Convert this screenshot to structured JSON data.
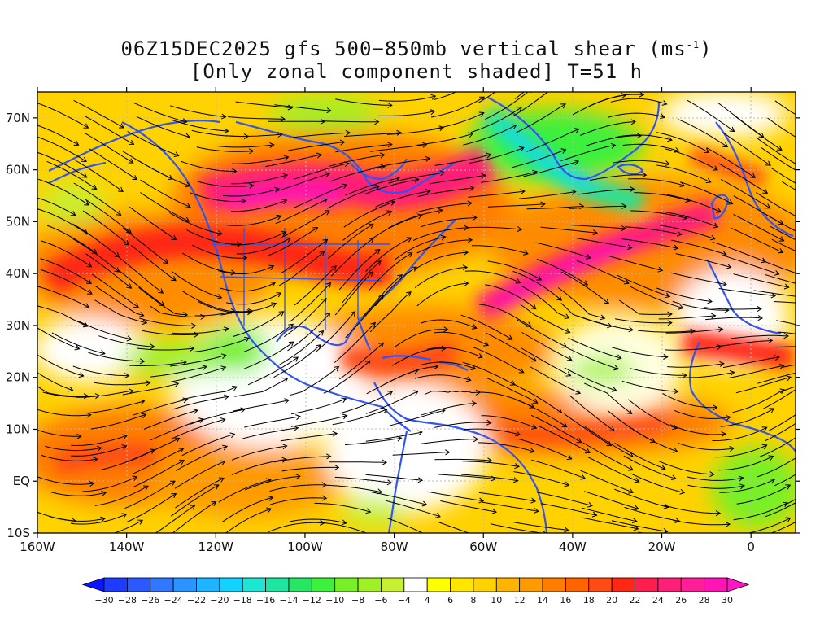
{
  "title": {
    "line1_prefix": "06Z15DEC2025 gfs 500−850mb vertical shear (ms",
    "line1_sup": "-1",
    "line1_suffix": ")",
    "line2": "[Only zonal component shaded] T=51 h"
  },
  "map": {
    "lon_range": [
      -160,
      10
    ],
    "lat_range": [
      -10,
      75
    ],
    "lat_ticks": [
      {
        "value": 70,
        "label": "70N"
      },
      {
        "value": 60,
        "label": "60N"
      },
      {
        "value": 50,
        "label": "50N"
      },
      {
        "value": 40,
        "label": "40N"
      },
      {
        "value": 30,
        "label": "30N"
      },
      {
        "value": 20,
        "label": "20N"
      },
      {
        "value": 10,
        "label": "10N"
      },
      {
        "value": 0,
        "label": "EQ"
      },
      {
        "value": -10,
        "label": "10S"
      }
    ],
    "lon_ticks": [
      {
        "value": -160,
        "label": "160W"
      },
      {
        "value": -140,
        "label": "140W"
      },
      {
        "value": -120,
        "label": "120W"
      },
      {
        "value": -100,
        "label": "100W"
      },
      {
        "value": -80,
        "label": "80W"
      },
      {
        "value": -60,
        "label": "60W"
      },
      {
        "value": -40,
        "label": "40W"
      },
      {
        "value": -20,
        "label": "20W"
      },
      {
        "value": 0,
        "label": "0"
      }
    ],
    "coastline_color": "#3355ee",
    "streamline_color": "#000000"
  },
  "colorbar": {
    "labels": [
      "−30",
      "−28",
      "−26",
      "−24",
      "−22",
      "−20",
      "−18",
      "−16",
      "−14",
      "−12",
      "−10",
      "−8",
      "−6",
      "−4",
      "4",
      "6",
      "8",
      "10",
      "12",
      "14",
      "16",
      "18",
      "20",
      "22",
      "24",
      "26",
      "28",
      "30"
    ],
    "colors": [
      "#1e3cff",
      "#2a5aff",
      "#3278ff",
      "#2c94ff",
      "#1eb4ff",
      "#14d2ff",
      "#1ee6d2",
      "#1ee6a0",
      "#28e664",
      "#3cf03c",
      "#78f028",
      "#a0f028",
      "#c8f032",
      "#ffffff",
      "#ffff00",
      "#ffe600",
      "#ffd200",
      "#ffb400",
      "#ff9b00",
      "#ff7d00",
      "#ff6400",
      "#ff4b14",
      "#ff2814",
      "#ff1e50",
      "#ff1e78",
      "#ff1e96",
      "#ff14b4"
    ],
    "low_arrow_color": "#0a14ff",
    "high_arrow_color": "#ff14c8"
  }
}
